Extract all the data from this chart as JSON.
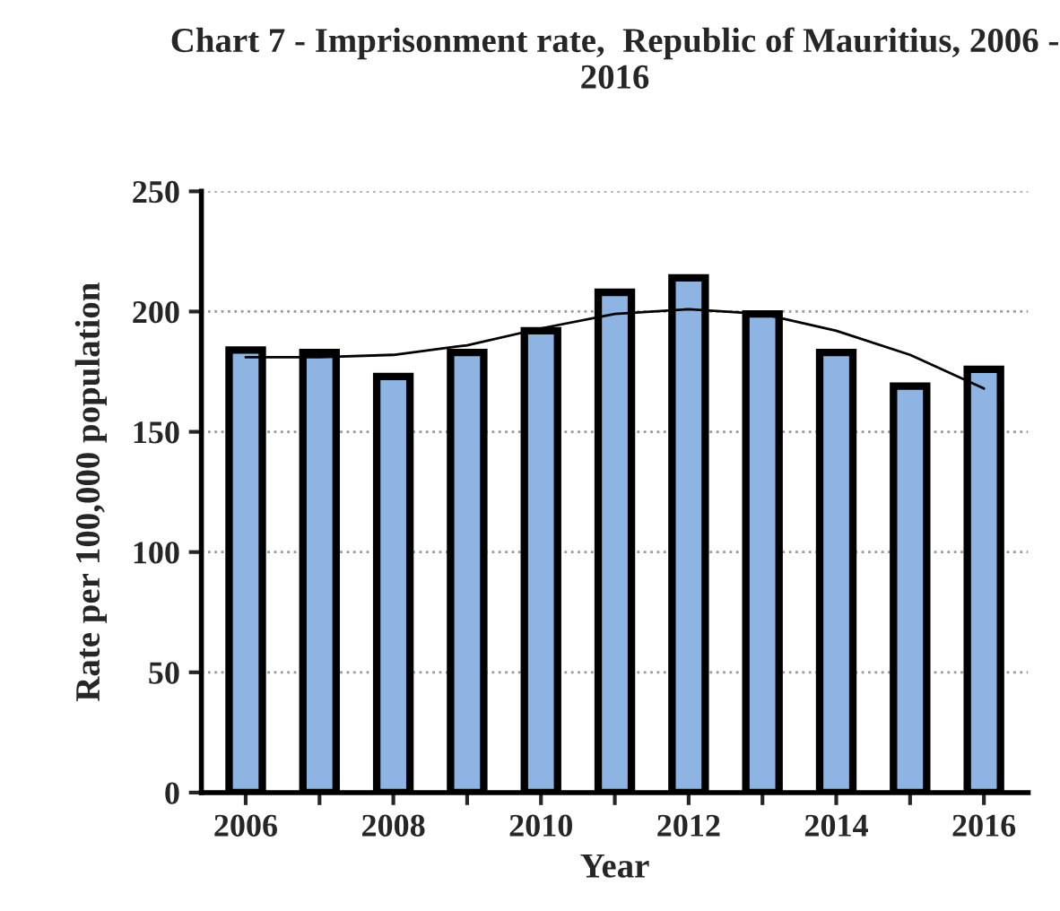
{
  "chart_data": {
    "type": "bar",
    "title": "Chart 7 - Imprisonment rate,  Republic of Mauritius, 2006 - 2016",
    "xlabel": "Year",
    "ylabel": "Rate per 100,000 population",
    "categories": [
      "2006",
      null,
      "2008",
      null,
      "2010",
      null,
      "2012",
      null,
      "2014",
      null,
      "2016"
    ],
    "series": [
      {
        "color": "#8db4e2",
        "values": [
          184,
          183,
          173,
          183,
          192,
          208,
          214,
          199,
          183,
          169,
          176
        ]
      },
      {
        "type": "line",
        "color": "#000000",
        "values": [
          181,
          181,
          182,
          186,
          193,
          199,
          201,
          199,
          192,
          182,
          168
        ]
      }
    ],
    "ylim": [
      0,
      250
    ],
    "yticks": [
      0,
      50,
      100,
      150,
      200,
      250
    ],
    "grid": "y",
    "legend": false
  }
}
